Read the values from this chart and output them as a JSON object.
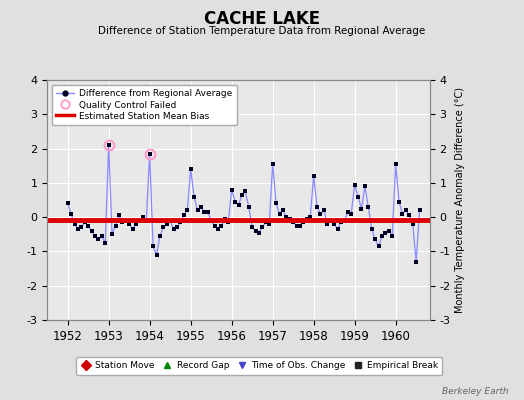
{
  "title": "CACHE LAKE",
  "subtitle": "Difference of Station Temperature Data from Regional Average",
  "ylabel_right": "Monthly Temperature Anomaly Difference (°C)",
  "watermark": "Berkeley Earth",
  "ylim": [
    -3,
    4
  ],
  "yticks": [
    -3,
    -2,
    -1,
    0,
    1,
    2,
    3,
    4
  ],
  "xlim": [
    1951.5,
    1960.83
  ],
  "xticks": [
    1952,
    1953,
    1954,
    1955,
    1956,
    1957,
    1958,
    1959,
    1960
  ],
  "bias_value": -0.07,
  "bg_color": "#e0e0e0",
  "plot_bg_color": "#e8e8e8",
  "line_color": "#8888ff",
  "marker_color": "#000022",
  "bias_color": "#dd0000",
  "qc_fail_color": "#ff99cc",
  "times": [
    1952.0,
    1952.083,
    1952.167,
    1952.25,
    1952.333,
    1952.417,
    1952.5,
    1952.583,
    1952.667,
    1952.75,
    1952.833,
    1952.917,
    1953.0,
    1953.083,
    1953.167,
    1953.25,
    1953.333,
    1953.417,
    1953.5,
    1953.583,
    1953.667,
    1953.75,
    1953.833,
    1953.917,
    1954.0,
    1954.083,
    1954.167,
    1954.25,
    1954.333,
    1954.417,
    1954.5,
    1954.583,
    1954.667,
    1954.75,
    1954.833,
    1954.917,
    1955.0,
    1955.083,
    1955.167,
    1955.25,
    1955.333,
    1955.417,
    1955.5,
    1955.583,
    1955.667,
    1955.75,
    1955.833,
    1955.917,
    1956.0,
    1956.083,
    1956.167,
    1956.25,
    1956.333,
    1956.417,
    1956.5,
    1956.583,
    1956.667,
    1956.75,
    1956.833,
    1956.917,
    1957.0,
    1957.083,
    1957.167,
    1957.25,
    1957.333,
    1957.417,
    1957.5,
    1957.583,
    1957.667,
    1957.75,
    1957.833,
    1957.917,
    1958.0,
    1958.083,
    1958.167,
    1958.25,
    1958.333,
    1958.417,
    1958.5,
    1958.583,
    1958.667,
    1958.75,
    1958.833,
    1958.917,
    1959.0,
    1959.083,
    1959.167,
    1959.25,
    1959.333,
    1959.417,
    1959.5,
    1959.583,
    1959.667,
    1959.75,
    1959.833,
    1959.917,
    1960.0,
    1960.083,
    1960.167,
    1960.25,
    1960.333,
    1960.417,
    1960.5,
    1960.583
  ],
  "values": [
    0.4,
    0.1,
    -0.2,
    -0.35,
    -0.3,
    -0.15,
    -0.25,
    -0.4,
    -0.55,
    -0.65,
    -0.55,
    -0.75,
    2.1,
    -0.5,
    -0.25,
    0.05,
    -0.15,
    -0.1,
    -0.2,
    -0.35,
    -0.2,
    -0.1,
    -0.0,
    -0.1,
    1.85,
    -0.85,
    -1.1,
    -0.55,
    -0.3,
    -0.2,
    -0.1,
    -0.35,
    -0.3,
    -0.15,
    0.05,
    0.2,
    1.4,
    0.6,
    0.2,
    0.3,
    0.15,
    0.15,
    -0.1,
    -0.25,
    -0.35,
    -0.25,
    -0.05,
    -0.15,
    0.8,
    0.45,
    0.35,
    0.65,
    0.75,
    0.3,
    -0.3,
    -0.4,
    -0.45,
    -0.3,
    -0.15,
    -0.2,
    1.55,
    0.4,
    0.1,
    0.2,
    0.0,
    -0.05,
    -0.15,
    -0.25,
    -0.25,
    -0.15,
    -0.05,
    0.0,
    1.2,
    0.3,
    0.1,
    0.2,
    -0.2,
    -0.1,
    -0.2,
    -0.35,
    -0.15,
    -0.1,
    0.15,
    0.1,
    0.95,
    0.6,
    0.25,
    0.9,
    0.3,
    -0.35,
    -0.65,
    -0.85,
    -0.55,
    -0.45,
    -0.4,
    -0.55,
    1.55,
    0.45,
    0.1,
    0.2,
    0.05,
    -0.2,
    -1.3,
    0.2
  ],
  "qc_fail_indices": [
    12,
    24
  ],
  "top_legend": [
    {
      "label": "Difference from Regional Average",
      "type": "line_marker"
    },
    {
      "label": "Quality Control Failed",
      "type": "qc"
    },
    {
      "label": "Estimated Station Mean Bias",
      "type": "bias"
    }
  ],
  "bottom_legend": [
    {
      "label": "Station Move",
      "color": "#cc0000",
      "marker": "D"
    },
    {
      "label": "Record Gap",
      "color": "#008800",
      "marker": "^"
    },
    {
      "label": "Time of Obs. Change",
      "color": "#4444cc",
      "marker": "v"
    },
    {
      "label": "Empirical Break",
      "color": "#222222",
      "marker": "s"
    }
  ]
}
